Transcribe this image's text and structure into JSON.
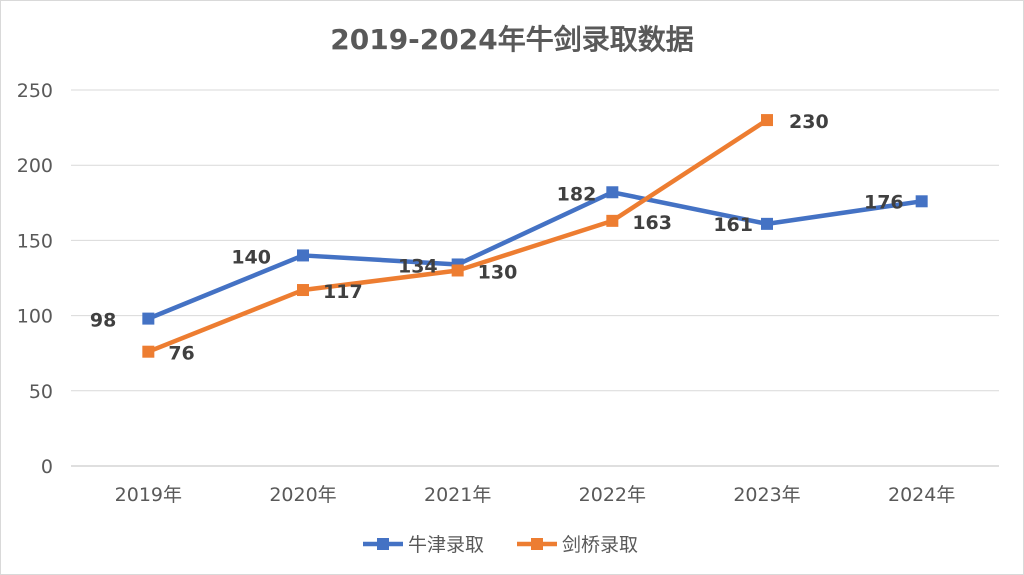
{
  "chart_data": {
    "type": "line",
    "title": "2019-2024年牛剑录取数据",
    "categories": [
      "2019年",
      "2020年",
      "2021年",
      "2022年",
      "2023年",
      "2024年"
    ],
    "ylim": [
      0,
      250
    ],
    "yticks": [
      0,
      50,
      100,
      150,
      200,
      250
    ],
    "grid": true,
    "legend": "bottom",
    "series": [
      {
        "name": "牛津录取",
        "color": "#4472c4",
        "values": [
          98,
          140,
          134,
          182,
          161,
          176
        ]
      },
      {
        "name": "剑桥录取",
        "color": "#ed7d31",
        "values": [
          76,
          117,
          130,
          163,
          230,
          null
        ]
      }
    ]
  }
}
